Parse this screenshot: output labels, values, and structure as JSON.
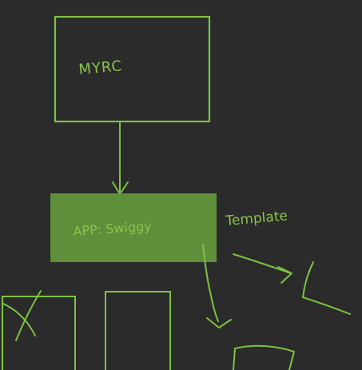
{
  "diagram": {
    "colors": {
      "background": "#2b2b2b",
      "stroke": "#7cc242",
      "highlight_fill": "#5f8f3a"
    },
    "nodes": {
      "top_box": {
        "label": "MYRC"
      },
      "app_box": {
        "label": "APP: Swiggy"
      },
      "template_label": "Template"
    }
  }
}
